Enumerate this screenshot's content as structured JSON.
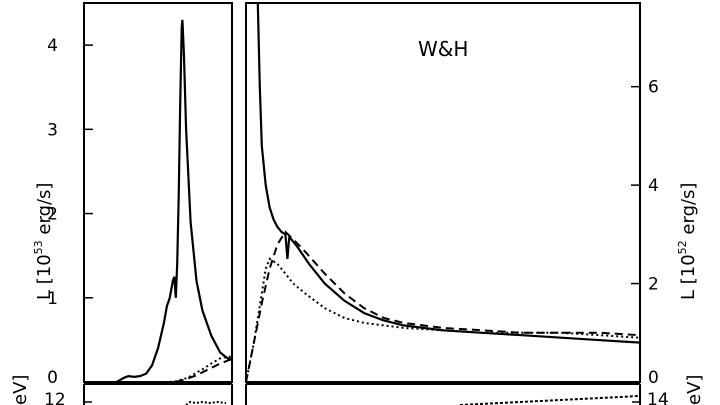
{
  "chart_data": [
    {
      "type": "line",
      "title": "",
      "ylabel": {
        "prefix": "L  [10",
        "exponent": "53",
        "suffix": " erg/s]"
      },
      "yticks": [
        "0",
        "1",
        "2",
        "3",
        "4"
      ],
      "ylim": [
        0,
        4.5
      ],
      "xlim": [
        0,
        1
      ],
      "series": [
        {
          "style": "solid",
          "points": [
            [
              0.22,
              0.0
            ],
            [
              0.27,
              0.05
            ],
            [
              0.3,
              0.07
            ],
            [
              0.34,
              0.06
            ],
            [
              0.38,
              0.07
            ],
            [
              0.42,
              0.1
            ],
            [
              0.46,
              0.2
            ],
            [
              0.5,
              0.4
            ],
            [
              0.54,
              0.7
            ],
            [
              0.56,
              0.9
            ],
            [
              0.58,
              1.0
            ],
            [
              0.6,
              1.2
            ],
            [
              0.61,
              1.25
            ],
            [
              0.62,
              1.0
            ],
            [
              0.63,
              1.4
            ],
            [
              0.64,
              2.2
            ],
            [
              0.65,
              3.3
            ],
            [
              0.66,
              4.2
            ],
            [
              0.665,
              4.3
            ],
            [
              0.675,
              3.9
            ],
            [
              0.69,
              3.0
            ],
            [
              0.72,
              1.9
            ],
            [
              0.76,
              1.2
            ],
            [
              0.8,
              0.85
            ],
            [
              0.86,
              0.55
            ],
            [
              0.92,
              0.35
            ],
            [
              0.97,
              0.28
            ],
            [
              1.0,
              0.27
            ]
          ]
        },
        {
          "style": "dotted",
          "points": [
            [
              0.58,
              0.0
            ],
            [
              0.62,
              0.01
            ],
            [
              0.66,
              0.03
            ],
            [
              0.7,
              0.05
            ],
            [
              0.74,
              0.09
            ],
            [
              0.8,
              0.15
            ],
            [
              0.86,
              0.22
            ],
            [
              0.92,
              0.28
            ],
            [
              0.97,
              0.3
            ],
            [
              1.0,
              0.3
            ]
          ]
        },
        {
          "style": "dashed",
          "points": [
            [
              0.62,
              0.0
            ],
            [
              0.66,
              0.02
            ],
            [
              0.7,
              0.04
            ],
            [
              0.76,
              0.08
            ],
            [
              0.84,
              0.15
            ],
            [
              0.92,
              0.22
            ],
            [
              0.98,
              0.26
            ],
            [
              1.0,
              0.27
            ]
          ]
        }
      ]
    },
    {
      "type": "line",
      "title": "W&H",
      "ylabel": {
        "prefix": "L  [10",
        "exponent": "52",
        "suffix": " erg/s]"
      },
      "yticks": [
        "0",
        "2",
        "4",
        "6"
      ],
      "ylim": [
        0,
        7.7
      ],
      "xlim": [
        0,
        1
      ],
      "series": [
        {
          "style": "solid",
          "points": [
            [
              0.03,
              7.7
            ],
            [
              0.035,
              6.0
            ],
            [
              0.04,
              4.8
            ],
            [
              0.05,
              4.0
            ],
            [
              0.06,
              3.55
            ],
            [
              0.07,
              3.3
            ],
            [
              0.08,
              3.15
            ],
            [
              0.09,
              3.05
            ],
            [
              0.1,
              3.0
            ],
            [
              0.105,
              2.5
            ],
            [
              0.11,
              2.95
            ],
            [
              0.13,
              2.75
            ],
            [
              0.16,
              2.4
            ],
            [
              0.2,
              2.0
            ],
            [
              0.25,
              1.65
            ],
            [
              0.3,
              1.4
            ],
            [
              0.35,
              1.25
            ],
            [
              0.4,
              1.15
            ],
            [
              0.5,
              1.05
            ],
            [
              0.6,
              1.0
            ],
            [
              0.7,
              0.95
            ],
            [
              0.8,
              0.9
            ],
            [
              0.9,
              0.85
            ],
            [
              1.0,
              0.8
            ]
          ]
        },
        {
          "style": "dashed",
          "points": [
            [
              0.0,
              0.0
            ],
            [
              0.02,
              0.8
            ],
            [
              0.04,
              1.6
            ],
            [
              0.06,
              2.3
            ],
            [
              0.08,
              2.8
            ],
            [
              0.1,
              3.05
            ],
            [
              0.12,
              2.9
            ],
            [
              0.15,
              2.65
            ],
            [
              0.2,
              2.2
            ],
            [
              0.25,
              1.8
            ],
            [
              0.3,
              1.5
            ],
            [
              0.35,
              1.3
            ],
            [
              0.4,
              1.2
            ],
            [
              0.5,
              1.1
            ],
            [
              0.6,
              1.05
            ],
            [
              0.7,
              1.0
            ],
            [
              0.8,
              1.0
            ],
            [
              0.9,
              1.0
            ],
            [
              1.0,
              0.95
            ]
          ]
        },
        {
          "style": "dotted",
          "points": [
            [
              0.0,
              0.0
            ],
            [
              0.02,
              0.8
            ],
            [
              0.04,
              1.8
            ],
            [
              0.05,
              2.3
            ],
            [
              0.06,
              2.5
            ],
            [
              0.08,
              2.4
            ],
            [
              0.1,
              2.2
            ],
            [
              0.12,
              2.0
            ],
            [
              0.15,
              1.8
            ],
            [
              0.2,
              1.5
            ],
            [
              0.25,
              1.3
            ],
            [
              0.3,
              1.2
            ],
            [
              0.4,
              1.1
            ],
            [
              0.5,
              1.05
            ],
            [
              0.6,
              1.0
            ],
            [
              0.7,
              1.0
            ],
            [
              0.8,
              1.0
            ],
            [
              0.9,
              0.95
            ],
            [
              1.0,
              0.9
            ]
          ]
        }
      ]
    }
  ],
  "bottom_panels": {
    "left": {
      "tick_visible": "12",
      "ylabel_fragment": "eV]"
    },
    "right": {
      "tick_visible": "14",
      "ylabel_fragment": "eV]"
    }
  }
}
